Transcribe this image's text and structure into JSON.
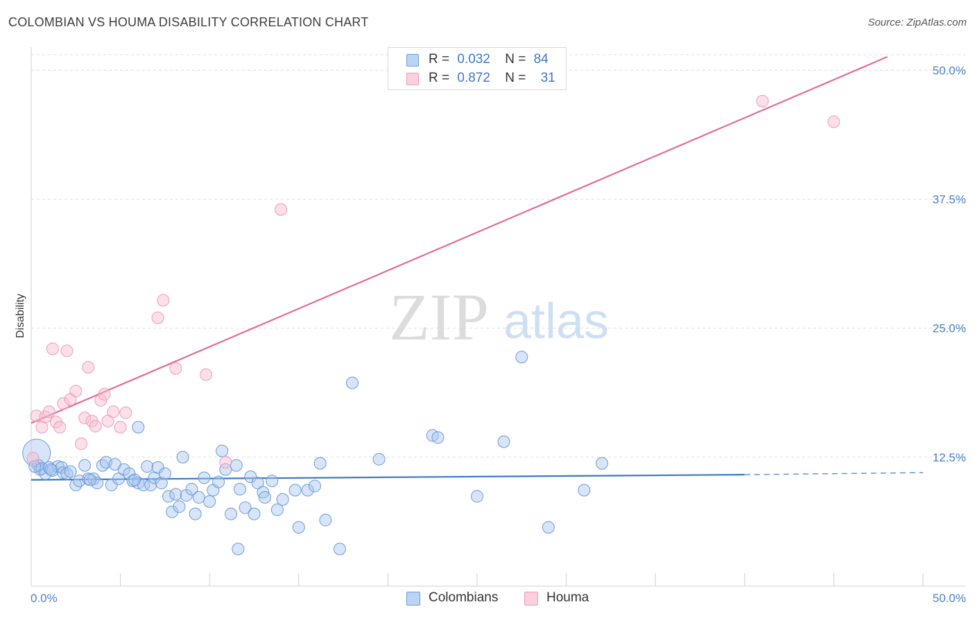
{
  "header": {
    "title": "COLOMBIAN VS HOUMA DISABILITY CORRELATION CHART",
    "source": "Source: ZipAtlas.com"
  },
  "colors": {
    "blue": "#3a78c9",
    "blue_fill": "rgba(168,198,240,0.45)",
    "blue_stroke": "#6a9ad8",
    "pink": "#e36a95",
    "pink_fill": "rgba(248,186,206,0.45)",
    "pink_stroke": "#ee9ab8",
    "grid": "#dcdcdc",
    "tick_text": "#4a7fc9"
  },
  "legend": {
    "rows": [
      {
        "r_label": "R =",
        "r_value": "0.032",
        "n_label": "N =",
        "n_value": "84"
      },
      {
        "r_label": "R =",
        "r_value": "0.872",
        "n_label": "N =",
        "n_value": "31"
      }
    ]
  },
  "bottom_legend": {
    "items": [
      "Colombians",
      "Houma"
    ]
  },
  "watermark": {
    "zip": "ZIP",
    "atlas": "atlas"
  },
  "chart_data": {
    "type": "scatter",
    "xlabel": "",
    "ylabel": "Disability",
    "xlim": [
      0,
      50
    ],
    "ylim": [
      0,
      51.5
    ],
    "x_tick_labels": [
      "0.0%",
      "50.0%"
    ],
    "y_ticks": [
      12.5,
      25.0,
      37.5,
      50.0
    ],
    "y_tick_labels": [
      "12.5%",
      "25.0%",
      "37.5%",
      "50.0%"
    ],
    "grid": "horizontal-dashed",
    "legend_position": "top-center",
    "series": [
      {
        "name": "Colombians",
        "color": "#3a78c9",
        "R": 0.032,
        "N": 84,
        "trend": {
          "x": [
            0,
            40
          ],
          "y": [
            10.3,
            10.8
          ],
          "dashed_to_x": 50,
          "dashed_to_y": 11.0
        },
        "points": [
          [
            0.3,
            12.9
          ],
          [
            0.4,
            11.7
          ],
          [
            0.5,
            11.3
          ],
          [
            0.6,
            11.4
          ],
          [
            0.8,
            10.9
          ],
          [
            1.0,
            11.5
          ],
          [
            1.2,
            11.2
          ],
          [
            1.5,
            11.6
          ],
          [
            1.7,
            11.5
          ],
          [
            1.8,
            11.0
          ],
          [
            2.0,
            10.9
          ],
          [
            2.2,
            11.1
          ],
          [
            2.5,
            9.8
          ],
          [
            2.7,
            10.2
          ],
          [
            3.0,
            11.7
          ],
          [
            3.2,
            10.4
          ],
          [
            3.5,
            10.4
          ],
          [
            3.7,
            10.0
          ],
          [
            4.0,
            11.7
          ],
          [
            4.2,
            12.0
          ],
          [
            4.5,
            9.8
          ],
          [
            4.7,
            11.8
          ],
          [
            4.9,
            10.4
          ],
          [
            5.2,
            11.3
          ],
          [
            5.5,
            10.9
          ],
          [
            5.7,
            10.2
          ],
          [
            6.0,
            10.0
          ],
          [
            6.0,
            15.4
          ],
          [
            6.3,
            9.8
          ],
          [
            6.5,
            11.6
          ],
          [
            6.7,
            9.8
          ],
          [
            6.9,
            10.5
          ],
          [
            7.1,
            11.5
          ],
          [
            7.3,
            10.0
          ],
          [
            7.5,
            10.9
          ],
          [
            7.7,
            8.7
          ],
          [
            7.9,
            7.2
          ],
          [
            8.1,
            8.9
          ],
          [
            8.3,
            7.7
          ],
          [
            8.5,
            12.5
          ],
          [
            8.7,
            8.8
          ],
          [
            9.0,
            9.4
          ],
          [
            9.2,
            7.0
          ],
          [
            9.4,
            8.6
          ],
          [
            9.7,
            10.5
          ],
          [
            10.0,
            8.2
          ],
          [
            10.2,
            9.3
          ],
          [
            10.5,
            10.1
          ],
          [
            10.7,
            13.1
          ],
          [
            10.9,
            11.3
          ],
          [
            11.2,
            7.0
          ],
          [
            11.5,
            11.7
          ],
          [
            11.7,
            9.4
          ],
          [
            12.0,
            7.6
          ],
          [
            12.3,
            10.6
          ],
          [
            12.5,
            7.0
          ],
          [
            12.7,
            10.0
          ],
          [
            13.0,
            9.1
          ],
          [
            13.1,
            8.6
          ],
          [
            13.8,
            7.4
          ],
          [
            14.1,
            8.4
          ],
          [
            14.8,
            9.3
          ],
          [
            15.0,
            5.7
          ],
          [
            15.5,
            9.3
          ],
          [
            15.9,
            9.7
          ],
          [
            16.2,
            11.9
          ],
          [
            16.5,
            6.4
          ],
          [
            17.3,
            3.6
          ],
          [
            18.0,
            19.7
          ],
          [
            19.5,
            12.3
          ],
          [
            22.5,
            14.6
          ],
          [
            22.8,
            14.4
          ],
          [
            25.0,
            8.7
          ],
          [
            26.5,
            14.0
          ],
          [
            27.5,
            22.2
          ],
          [
            29.0,
            5.7
          ],
          [
            31.0,
            9.3
          ],
          [
            32.0,
            11.9
          ],
          [
            0.2,
            11.6
          ],
          [
            1.1,
            11.3
          ],
          [
            3.3,
            10.3
          ],
          [
            5.8,
            10.3
          ],
          [
            11.6,
            3.6
          ],
          [
            13.5,
            10.2
          ]
        ]
      },
      {
        "name": "Houma",
        "color": "#e36a95",
        "R": 0.872,
        "N": 31,
        "trend": {
          "x": [
            0,
            48
          ],
          "y": [
            15.8,
            51.3
          ]
        },
        "points": [
          [
            0.1,
            12.4
          ],
          [
            0.3,
            16.5
          ],
          [
            0.6,
            15.4
          ],
          [
            0.8,
            16.4
          ],
          [
            1.0,
            16.9
          ],
          [
            1.2,
            23.0
          ],
          [
            1.4,
            15.9
          ],
          [
            1.6,
            15.4
          ],
          [
            1.8,
            17.7
          ],
          [
            2.0,
            22.8
          ],
          [
            2.2,
            18.1
          ],
          [
            2.5,
            18.9
          ],
          [
            2.8,
            13.8
          ],
          [
            3.0,
            16.3
          ],
          [
            3.2,
            21.2
          ],
          [
            3.4,
            16.0
          ],
          [
            3.6,
            15.5
          ],
          [
            3.9,
            18.0
          ],
          [
            4.1,
            18.6
          ],
          [
            4.3,
            16.0
          ],
          [
            4.6,
            16.9
          ],
          [
            5.0,
            15.4
          ],
          [
            5.3,
            16.8
          ],
          [
            7.1,
            26.0
          ],
          [
            7.4,
            27.7
          ],
          [
            8.1,
            21.1
          ],
          [
            9.8,
            20.5
          ],
          [
            10.9,
            12.0
          ],
          [
            14.0,
            36.5
          ],
          [
            41.0,
            47.0
          ],
          [
            45.0,
            45.0
          ]
        ]
      }
    ]
  }
}
